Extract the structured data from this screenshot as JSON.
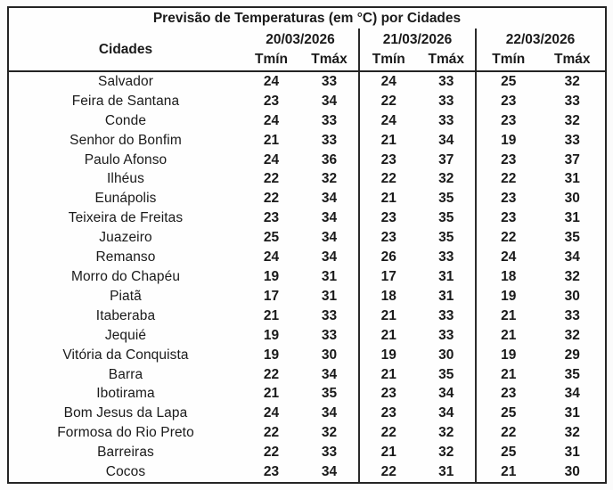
{
  "page": {
    "background_color": "#fbfbfb",
    "border_color": "#232323",
    "text_color": "#1a1a1a"
  },
  "table": {
    "title": "Previsão de Temperaturas (em °C) por Cidades",
    "city_column_header": "Cidades",
    "date_headers": [
      "20/03/2026",
      "21/03/2026",
      "22/03/2026"
    ],
    "tmin_label": "Tmín",
    "tmax_label": "Tmáx",
    "rows": [
      {
        "city": "Salvador",
        "temps": [
          24,
          33,
          24,
          33,
          25,
          32
        ]
      },
      {
        "city": "Feira de Santana",
        "temps": [
          23,
          34,
          22,
          33,
          23,
          33
        ]
      },
      {
        "city": "Conde",
        "temps": [
          24,
          33,
          24,
          33,
          23,
          32
        ]
      },
      {
        "city": "Senhor do Bonfim",
        "temps": [
          21,
          33,
          21,
          34,
          19,
          33
        ]
      },
      {
        "city": "Paulo Afonso",
        "temps": [
          24,
          36,
          23,
          37,
          23,
          37
        ]
      },
      {
        "city": "Ilhéus",
        "temps": [
          22,
          32,
          22,
          32,
          22,
          31
        ]
      },
      {
        "city": "Eunápolis",
        "temps": [
          22,
          34,
          21,
          35,
          23,
          30
        ]
      },
      {
        "city": "Teixeira de Freitas",
        "temps": [
          23,
          34,
          23,
          35,
          23,
          31
        ]
      },
      {
        "city": "Juazeiro",
        "temps": [
          25,
          34,
          23,
          35,
          22,
          35
        ]
      },
      {
        "city": "Remanso",
        "temps": [
          24,
          34,
          26,
          33,
          24,
          34
        ]
      },
      {
        "city": "Morro do Chapéu",
        "temps": [
          19,
          31,
          17,
          31,
          18,
          32
        ]
      },
      {
        "city": "Piatã",
        "temps": [
          17,
          31,
          18,
          31,
          19,
          30
        ]
      },
      {
        "city": "Itaberaba",
        "temps": [
          21,
          33,
          21,
          33,
          21,
          33
        ]
      },
      {
        "city": "Jequié",
        "temps": [
          19,
          33,
          21,
          33,
          21,
          32
        ]
      },
      {
        "city": "Vitória da Conquista",
        "temps": [
          19,
          30,
          19,
          30,
          19,
          29
        ]
      },
      {
        "city": "Barra",
        "temps": [
          22,
          34,
          21,
          35,
          21,
          35
        ]
      },
      {
        "city": "Ibotirama",
        "temps": [
          21,
          35,
          23,
          34,
          23,
          34
        ]
      },
      {
        "city": "Bom Jesus da Lapa",
        "temps": [
          24,
          34,
          23,
          34,
          25,
          31
        ]
      },
      {
        "city": "Formosa do Rio Preto",
        "temps": [
          22,
          32,
          22,
          32,
          22,
          32
        ]
      },
      {
        "city": "Barreiras",
        "temps": [
          22,
          33,
          21,
          32,
          25,
          31
        ]
      },
      {
        "city": "Cocos",
        "temps": [
          23,
          34,
          22,
          31,
          21,
          30
        ]
      }
    ]
  }
}
